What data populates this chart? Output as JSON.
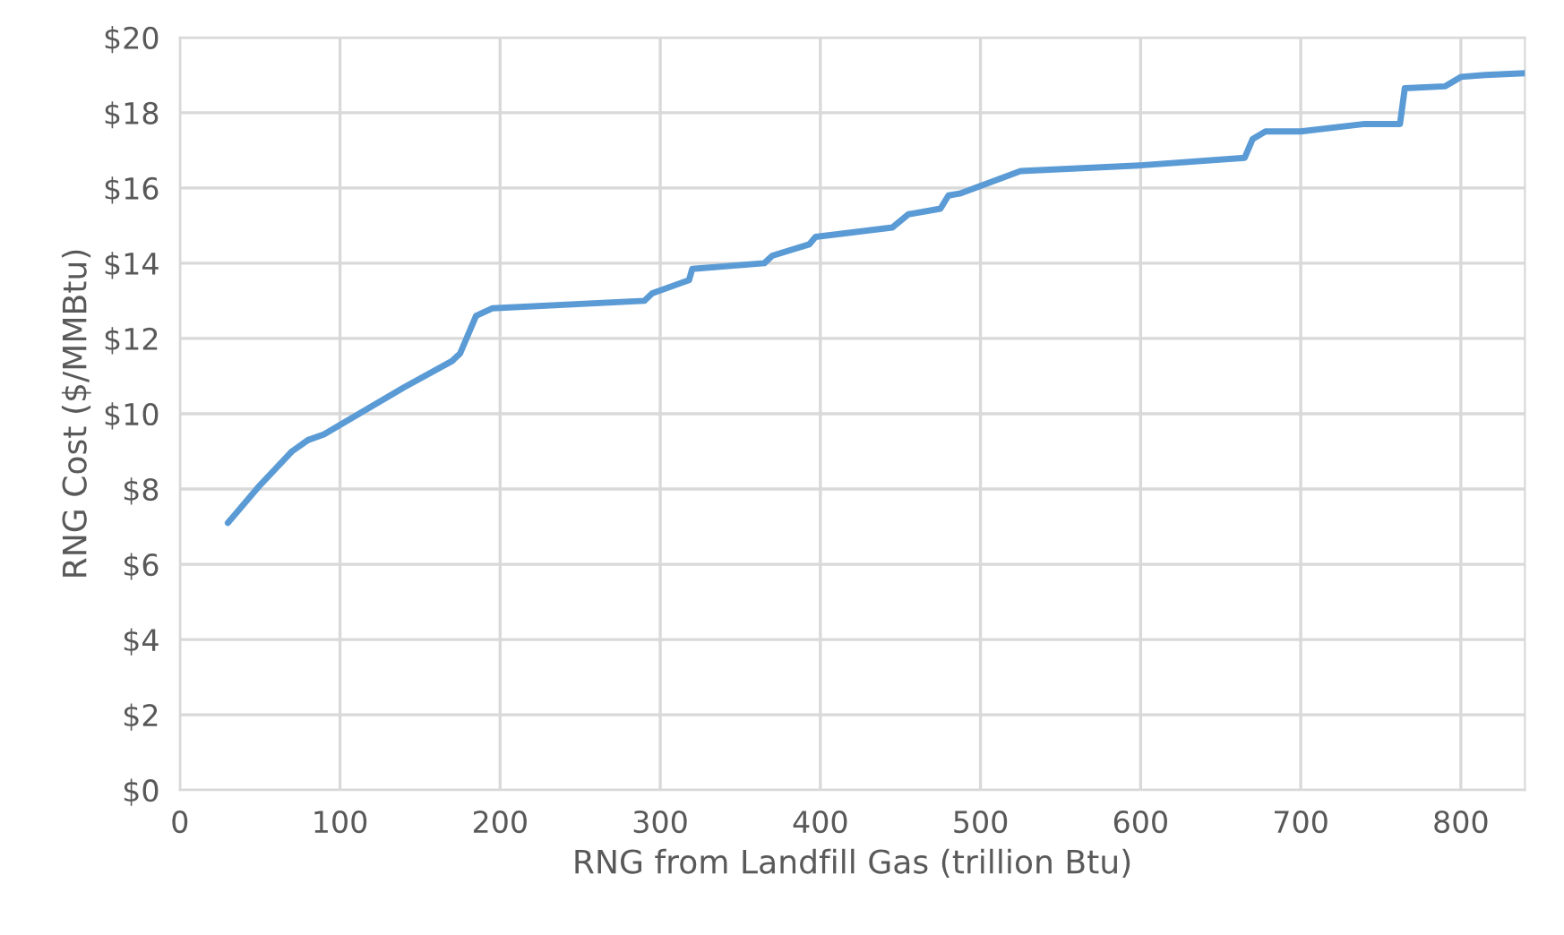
{
  "chart_data": {
    "type": "line",
    "xlabel": "RNG from Landfill Gas (trillion Btu)",
    "ylabel": "RNG Cost ($/MMBtu)",
    "xlim": [
      0,
      840
    ],
    "xticks": [
      0,
      100,
      200,
      300,
      400,
      500,
      600,
      700,
      800
    ],
    "ylim": [
      0,
      20
    ],
    "yticks": [
      {
        "value": 0,
        "label": "$0"
      },
      {
        "value": 2,
        "label": "$2"
      },
      {
        "value": 4,
        "label": "$4"
      },
      {
        "value": 6,
        "label": "$6"
      },
      {
        "value": 8,
        "label": "$8"
      },
      {
        "value": 10,
        "label": "$10"
      },
      {
        "value": 12,
        "label": "$12"
      },
      {
        "value": 14,
        "label": "$14"
      },
      {
        "value": 16,
        "label": "$16"
      },
      {
        "value": 18,
        "label": "$18"
      },
      {
        "value": 20,
        "label": "$20"
      }
    ],
    "grid": true,
    "marker": "none",
    "line_style": "solid",
    "series": [
      {
        "color": "#5b9bd5",
        "x": [
          30,
          50,
          70,
          80,
          90,
          100,
          140,
          170,
          175,
          185,
          195,
          290,
          295,
          318,
          320,
          365,
          370,
          393,
          397,
          445,
          455,
          475,
          480,
          487,
          525,
          600,
          665,
          670,
          678,
          700,
          740,
          762,
          765,
          790,
          800,
          815,
          840
        ],
        "values": [
          7.1,
          8.1,
          9.0,
          9.3,
          9.45,
          9.7,
          10.7,
          11.4,
          11.6,
          12.6,
          12.8,
          13.0,
          13.2,
          13.55,
          13.85,
          14.0,
          14.2,
          14.5,
          14.7,
          14.95,
          15.3,
          15.45,
          15.8,
          15.85,
          16.45,
          16.6,
          16.8,
          17.3,
          17.5,
          17.5,
          17.7,
          17.7,
          18.65,
          18.7,
          18.95,
          19.0,
          19.05
        ]
      }
    ]
  }
}
